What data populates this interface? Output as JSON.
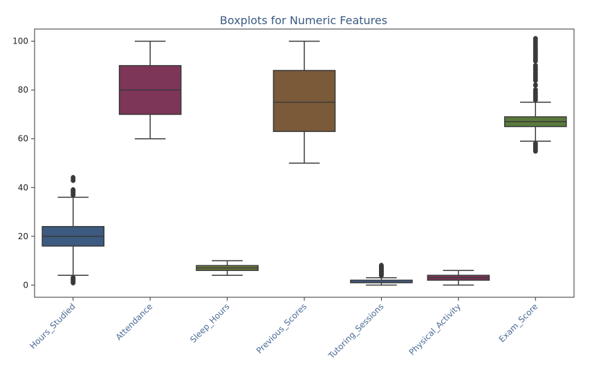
{
  "chart_data": {
    "type": "box",
    "title": "Boxplots for Numeric Features",
    "xlabel": "",
    "ylabel": "",
    "ylim": [
      -5,
      105
    ],
    "yticks": [
      0,
      20,
      40,
      60,
      80,
      100
    ],
    "grid": false,
    "tick_label_color": "#4a6a96",
    "categories": [
      "Hours_Studied",
      "Attendance",
      "Sleep_Hours",
      "Previous_Scores",
      "Tutoring_Sessions",
      "Physical_Activity",
      "Exam_Score"
    ],
    "boxes": [
      {
        "name": "Hours_Studied",
        "color": "#3d5a80",
        "whisker_low": 4,
        "q1": 16,
        "median": 20,
        "q3": 24,
        "whisker_high": 36,
        "outliers": [
          1,
          1.5,
          2,
          2.5,
          3,
          37,
          38,
          38.5,
          39,
          43,
          44
        ]
      },
      {
        "name": "Attendance",
        "color": "#7d3558",
        "whisker_low": 60,
        "q1": 70,
        "median": 80,
        "q3": 90,
        "whisker_high": 100,
        "outliers": []
      },
      {
        "name": "Sleep_Hours",
        "color": "#6b7a3c",
        "whisker_low": 4,
        "q1": 6,
        "median": 7,
        "q3": 8,
        "whisker_high": 10,
        "outliers": []
      },
      {
        "name": "Previous_Scores",
        "color": "#7a5a38",
        "whisker_low": 50,
        "q1": 63,
        "median": 75,
        "q3": 88,
        "whisker_high": 100,
        "outliers": []
      },
      {
        "name": "Tutoring_Sessions",
        "color": "#3d5a80",
        "whisker_low": 0,
        "q1": 1,
        "median": 1,
        "q3": 2,
        "whisker_high": 3,
        "outliers": [
          4,
          4.5,
          5,
          5.5,
          6,
          6.5,
          7,
          7.5,
          8
        ]
      },
      {
        "name": "Physical_Activity",
        "color": "#7d3558",
        "whisker_low": 0,
        "q1": 2,
        "median": 3,
        "q3": 4,
        "whisker_high": 6,
        "outliers": []
      },
      {
        "name": "Exam_Score",
        "color": "#5a7a3c",
        "whisker_low": 59,
        "q1": 65,
        "median": 67,
        "q3": 69,
        "whisker_high": 75,
        "outliers": [
          55,
          56,
          57,
          58,
          76,
          77,
          78,
          79,
          80,
          82,
          84,
          85,
          86,
          87,
          88,
          89,
          90,
          92,
          93,
          94,
          95,
          96,
          97,
          98,
          99,
          100,
          101
        ]
      }
    ]
  }
}
